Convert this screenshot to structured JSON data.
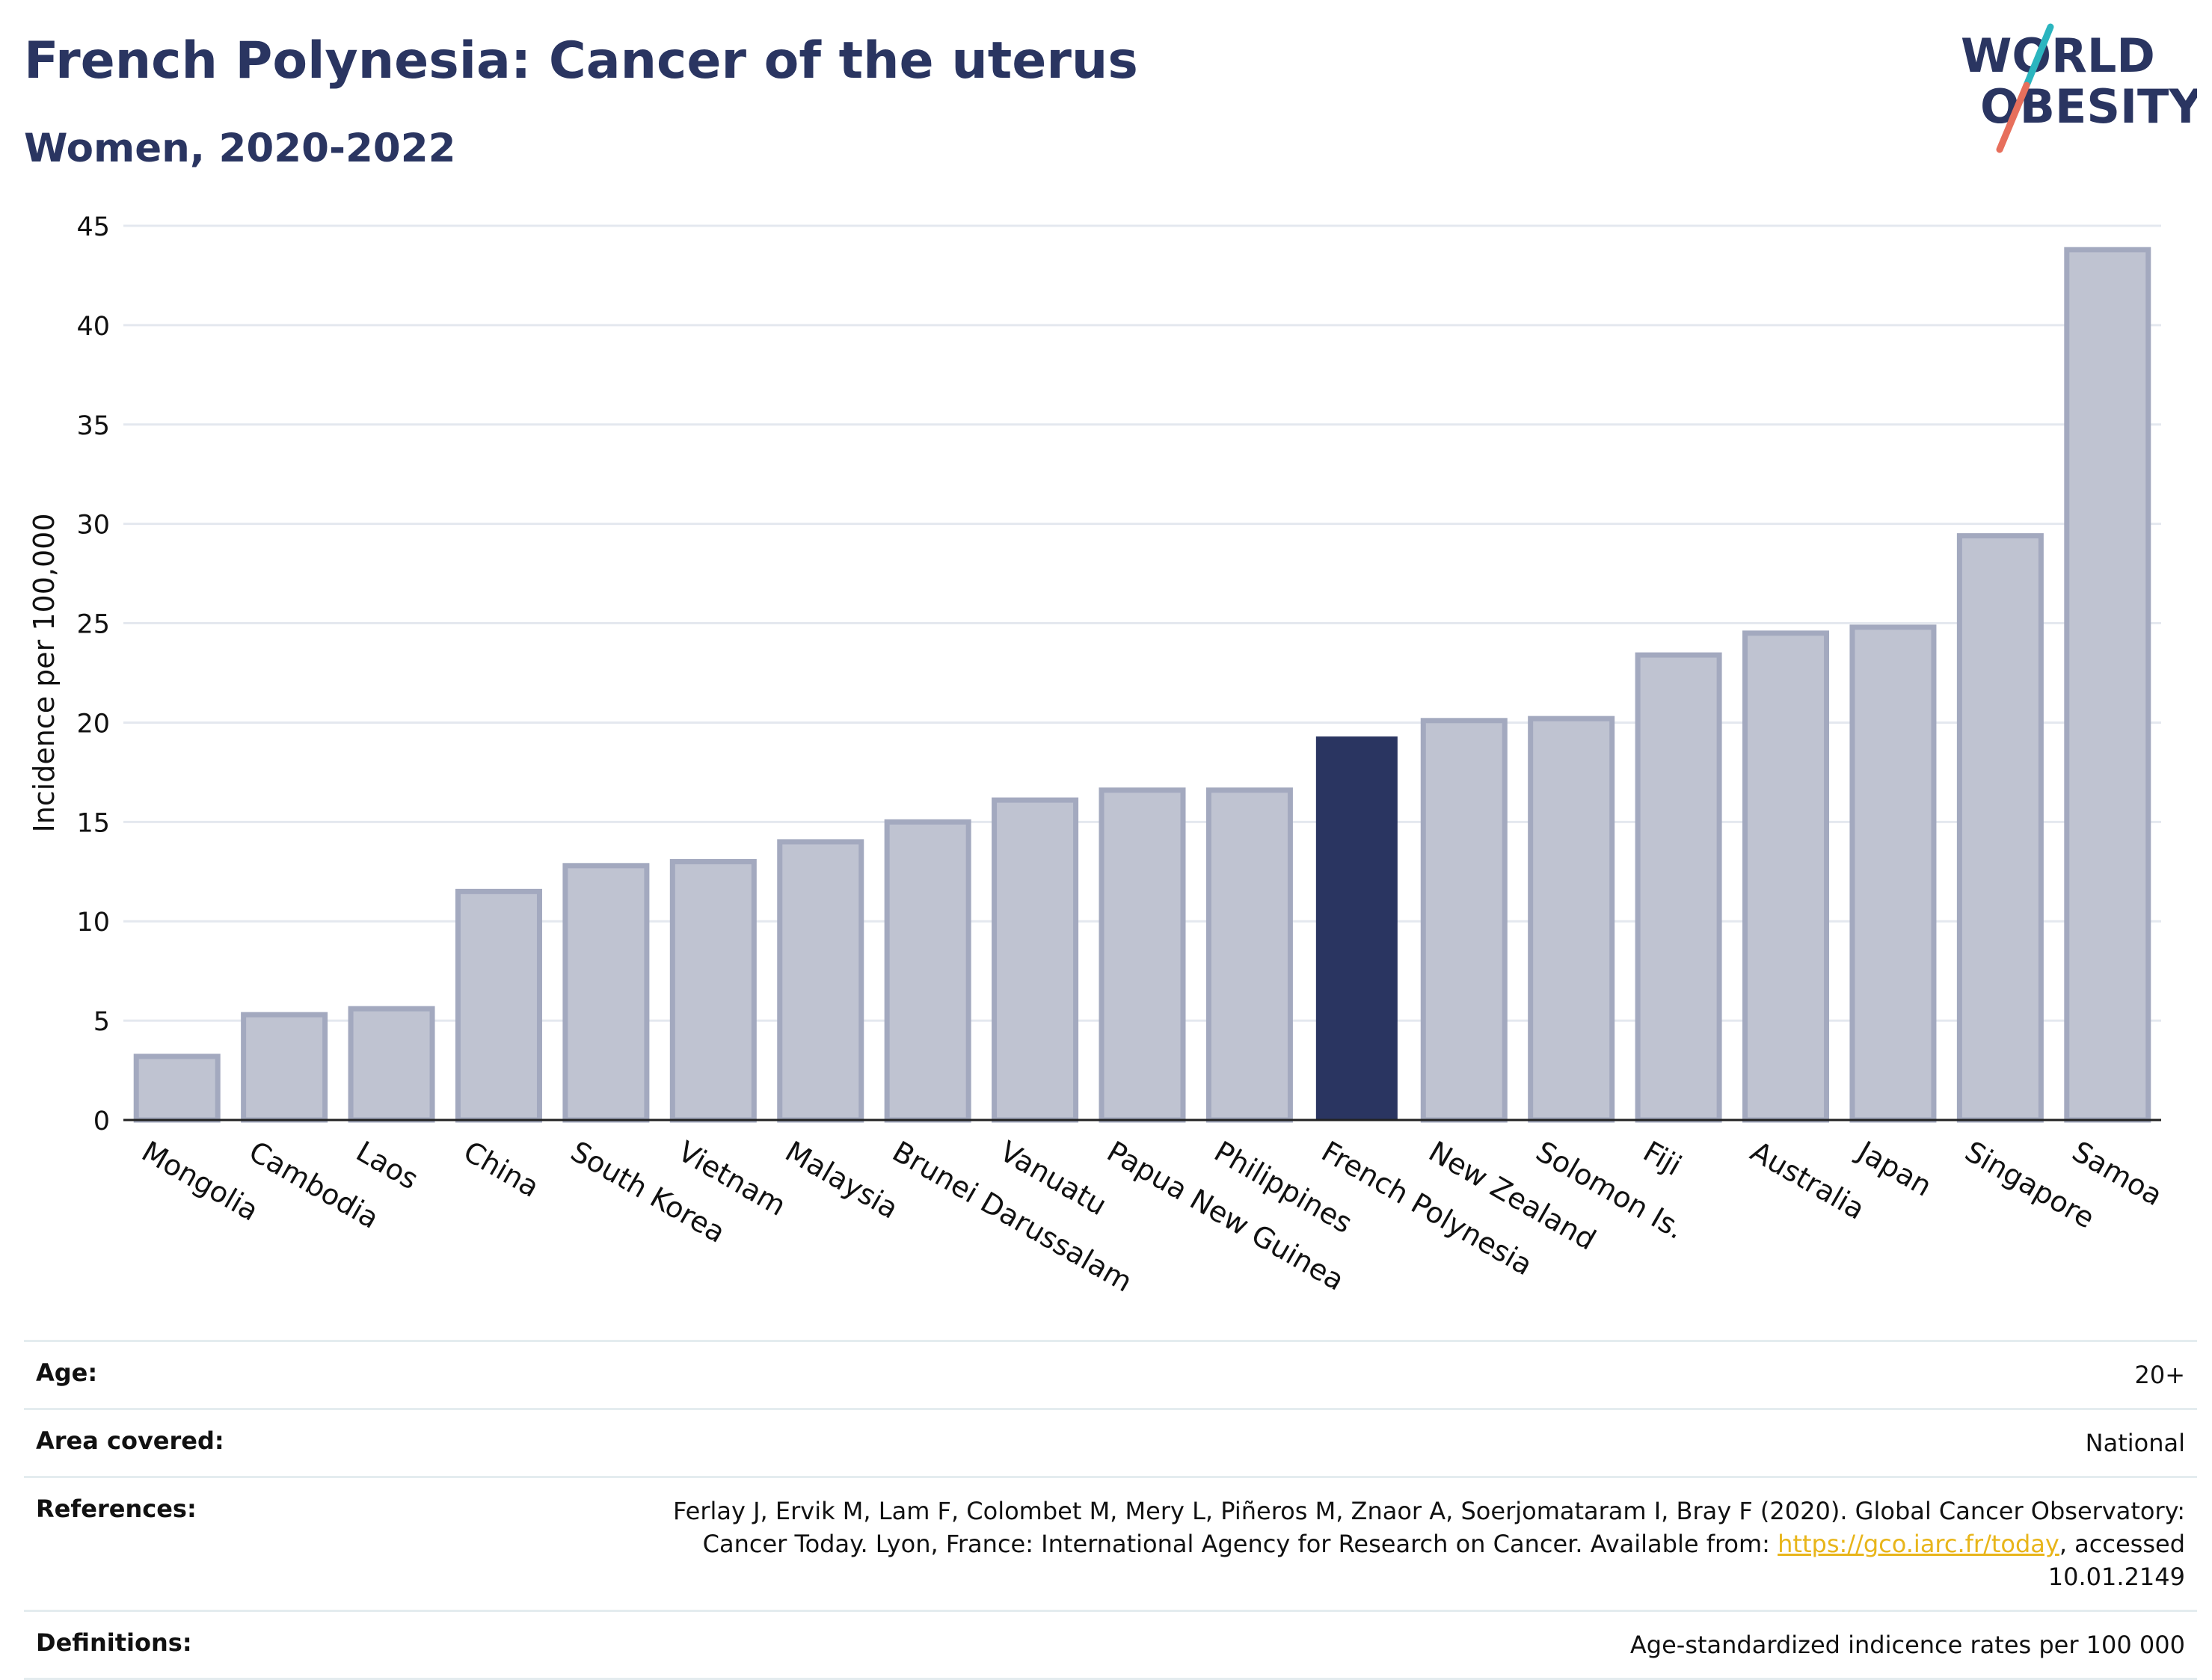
{
  "header": {
    "title": "French Polynesia: Cancer of the uterus",
    "subtitle": "Women, 2020-2022"
  },
  "logo": {
    "line1": "WORLD",
    "line2": "OBESITY",
    "name": "world-obesity-logo"
  },
  "colors": {
    "bar": "#bfc3d1",
    "bar_border": "#a3a9bf",
    "highlight": "#2a3561",
    "text": "#2a3561",
    "grid": "#e4e8ef",
    "link": "#e8b51a",
    "logo_teal": "#2bb5bf",
    "logo_coral": "#e76f5c"
  },
  "chart_data": {
    "type": "bar",
    "categories": [
      "Mongolia",
      "Cambodia",
      "Laos",
      "China",
      "South Korea",
      "Vietnam",
      "Malaysia",
      "Brunei Darussalam",
      "Vanuatu",
      "Papua New Guinea",
      "Philippines",
      "French Polynesia",
      "New Zealand",
      "Solomon Is.",
      "Fiji",
      "Australia",
      "Japan",
      "Singapore",
      "Samoa"
    ],
    "values": [
      3.2,
      5.3,
      5.6,
      11.5,
      12.8,
      13.0,
      14.0,
      15.0,
      16.1,
      16.6,
      16.6,
      19.3,
      20.1,
      20.2,
      23.4,
      24.5,
      24.8,
      29.4,
      43.8
    ],
    "highlight": "French Polynesia",
    "ylabel": "Incidence per 100,000",
    "xlabel": "",
    "ylim": [
      0,
      45
    ],
    "yticks": [
      0,
      5,
      10,
      15,
      20,
      25,
      30,
      35,
      40,
      45
    ],
    "grid": true
  },
  "meta": {
    "age_label": "Age:",
    "age_value": "20+",
    "area_label": "Area covered:",
    "area_value": "National",
    "references_label": "References:",
    "references_text_1": "Ferlay J, Ervik M, Lam F, Colombet M, Mery L, Piñeros M, Znaor A, Soerjomataram I, Bray F (2020). Global Cancer Observatory: Cancer Today. Lyon, France: International Agency for Research on Cancer. Available from: ",
    "references_link": "https://gco.iarc.fr/today",
    "references_text_2": ", accessed 10.01.2149",
    "definitions_label": "Definitions:",
    "definitions_value": "Age-standardized indicence rates per 100 000"
  }
}
